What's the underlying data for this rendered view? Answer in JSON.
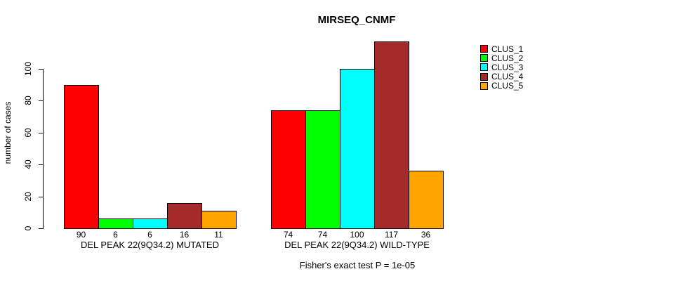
{
  "title": "MIRSEQ_CNMF",
  "chart_data": {
    "type": "bar",
    "title": "MIRSEQ_CNMF",
    "xlabel": "",
    "ylabel": "number of cases",
    "yticks": [
      0,
      20,
      40,
      60,
      80,
      100
    ],
    "ylim": [
      0,
      117
    ],
    "grid": false,
    "legend_position": "right-outside",
    "categories": [
      "DEL PEAK 22(9Q34.2) MUTATED",
      "DEL PEAK 22(9Q34.2) WILD-TYPE"
    ],
    "series": [
      {
        "name": "CLUS_1",
        "color": "#ff0000",
        "values": [
          90,
          74
        ]
      },
      {
        "name": "CLUS_2",
        "color": "#00ff00",
        "values": [
          6,
          74
        ]
      },
      {
        "name": "CLUS_3",
        "color": "#00ffff",
        "values": [
          6,
          100
        ]
      },
      {
        "name": "CLUS_4",
        "color": "#a52a2a",
        "values": [
          16,
          117
        ]
      },
      {
        "name": "CLUS_5",
        "color": "#ffa500",
        "values": [
          11,
          36
        ]
      }
    ],
    "bar_value_labels_shown": true,
    "annotation": "Fisher's exact test P = 1e-05"
  },
  "colors": {
    "background": "#ffffff",
    "axis": "#000000",
    "text": "#000000"
  }
}
